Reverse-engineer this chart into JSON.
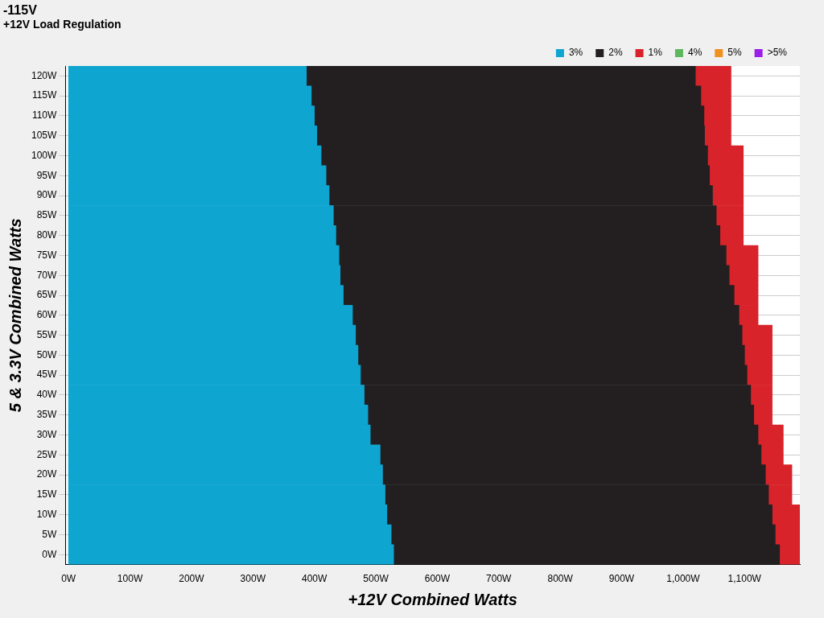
{
  "chart_data": {
    "type": "bar",
    "orientation": "horizontal",
    "stacked": true,
    "title": "-115V",
    "subtitle": "+12V Load Regulation",
    "xlabel": "+12V Combined Watts",
    "ylabel": "5 & 3.3V Combined Watts",
    "categories": [
      "120W",
      "115W",
      "110W",
      "105W",
      "100W",
      "95W",
      "90W",
      "85W",
      "80W",
      "75W",
      "70W",
      "65W",
      "60W",
      "55W",
      "50W",
      "45W",
      "40W",
      "35W",
      "30W",
      "25W",
      "20W",
      "15W",
      "10W",
      "5W",
      "0W"
    ],
    "series": [
      {
        "name": "3%",
        "color": "#0ea5d1",
        "values": [
          387,
          395,
          400,
          404,
          411,
          419,
          424,
          431,
          435,
          440,
          442,
          447,
          462,
          467,
          471,
          475,
          481,
          487,
          491,
          507,
          511,
          515,
          518,
          525,
          529
        ]
      },
      {
        "name": "2%",
        "color": "#231f20",
        "values": [
          633,
          634,
          634,
          631,
          629,
          624,
          624,
          623,
          625,
          630,
          633,
          636,
          629,
          629,
          629,
          629,
          629,
          628,
          631,
          620,
          623,
          624,
          627,
          625,
          628
        ]
      },
      {
        "name": "1%",
        "color": "#d9232a",
        "values": [
          58,
          49,
          44,
          43,
          58,
          55,
          50,
          44,
          38,
          52,
          47,
          39,
          31,
          49,
          45,
          41,
          35,
          30,
          41,
          36,
          43,
          38,
          45,
          40,
          33
        ]
      },
      {
        "name": "4%",
        "color": "#5cb85c",
        "values": [
          null,
          null,
          null,
          null,
          null,
          null,
          null,
          null,
          null,
          null,
          null,
          null,
          null,
          null,
          null,
          null,
          null,
          null,
          null,
          null,
          null,
          null,
          null,
          null,
          null
        ]
      },
      {
        "name": "5%",
        "color": "#f0901e",
        "values": [
          null,
          null,
          null,
          null,
          null,
          null,
          null,
          null,
          null,
          null,
          null,
          null,
          null,
          null,
          null,
          null,
          null,
          null,
          null,
          null,
          null,
          null,
          null,
          null,
          null
        ]
      },
      {
        "name": ">5%",
        "color": "#9b1fe8",
        "values": [
          null,
          null,
          null,
          null,
          null,
          null,
          null,
          null,
          null,
          null,
          null,
          null,
          null,
          null,
          null,
          null,
          null,
          null,
          null,
          null,
          null,
          null,
          null,
          null,
          null
        ]
      }
    ],
    "xlim": [
      -5,
      1190
    ],
    "xticks": [
      {
        "value": 0,
        "label": "0W"
      },
      {
        "value": 100,
        "label": "100W"
      },
      {
        "value": 200,
        "label": "200W"
      },
      {
        "value": 300,
        "label": "300W"
      },
      {
        "value": 400,
        "label": "400W"
      },
      {
        "value": 500,
        "label": "500W"
      },
      {
        "value": 600,
        "label": "600W"
      },
      {
        "value": 700,
        "label": "700W"
      },
      {
        "value": 800,
        "label": "800W"
      },
      {
        "value": 900,
        "label": "900W"
      },
      {
        "value": 1000,
        "label": "1,000W"
      },
      {
        "value": 1100,
        "label": "1,100W"
      }
    ],
    "grid": "y",
    "legend": "top right"
  }
}
